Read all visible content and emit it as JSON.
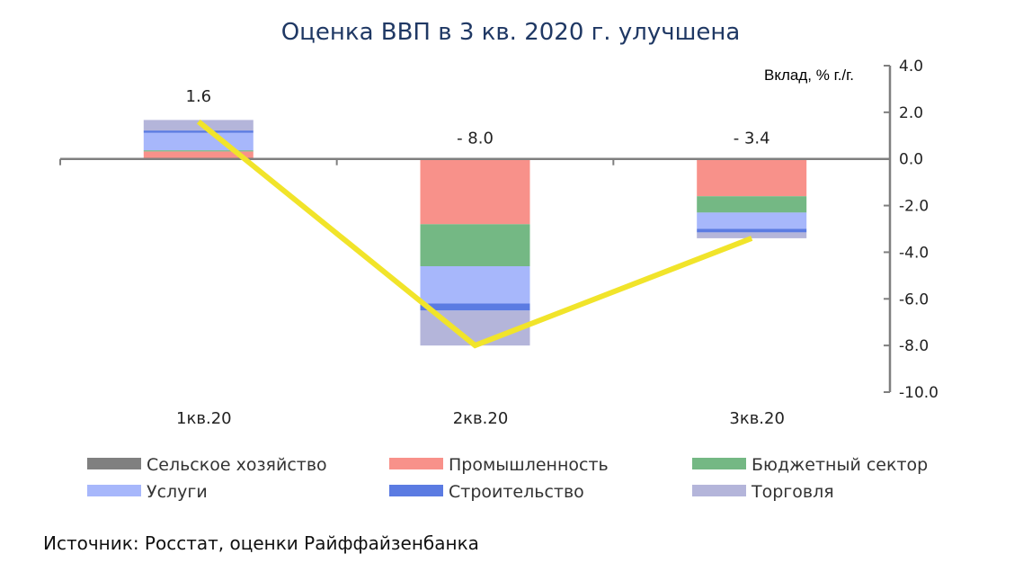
{
  "chart_data": {
    "type": "bar",
    "title": "Оценка ВВП в 3 кв. 2020 г. улучшена",
    "ylabel": "Вклад, % г./г.",
    "xlabel": "",
    "ylim": [
      -10,
      4
    ],
    "yticks": [
      4.0,
      2.0,
      0.0,
      -2.0,
      -4.0,
      -6.0,
      -8.0,
      -10.0
    ],
    "ytick_labels": [
      "4.0",
      "2.0",
      "0.0",
      "-2.0",
      "-4.0",
      "-6.0",
      "-8.0",
      "-10.0"
    ],
    "y_axis_position": "right",
    "stacked": true,
    "grid": false,
    "legend_position": "bottom",
    "categories": [
      "1кв.20",
      "2кв.20",
      "3кв.20"
    ],
    "series": [
      {
        "name": "Сельское хозяйство",
        "color": "#808080",
        "values": [
          0.02,
          0.0,
          0.0
        ],
        "style": "bar"
      },
      {
        "name": "Промышленность",
        "color": "#f8918a",
        "values": [
          0.3,
          -2.8,
          -1.6
        ],
        "style": "bar"
      },
      {
        "name": "Бюджетный сектор",
        "color": "#74b884",
        "values": [
          0.05,
          -1.8,
          -0.7
        ],
        "style": "bar"
      },
      {
        "name": "Услуги",
        "color": "#a7b7fb",
        "values": [
          0.75,
          -1.6,
          -0.7
        ],
        "style": "bar"
      },
      {
        "name": "Строительство",
        "color": "#5b7be2",
        "values": [
          0.1,
          -0.3,
          -0.15
        ],
        "style": "line-mark"
      },
      {
        "name": "Торговля",
        "color": "#b4b5da",
        "values": [
          0.45,
          -1.5,
          -0.25
        ],
        "style": "bar"
      }
    ],
    "total": {
      "color": "#f1e42a",
      "values": [
        1.6,
        -8.0,
        -3.4
      ],
      "labels": [
        "1.6",
        "- 8.0",
        "- 3.4"
      ]
    },
    "source": "Источник: Росстат, оценки Райффайзенбанка"
  }
}
